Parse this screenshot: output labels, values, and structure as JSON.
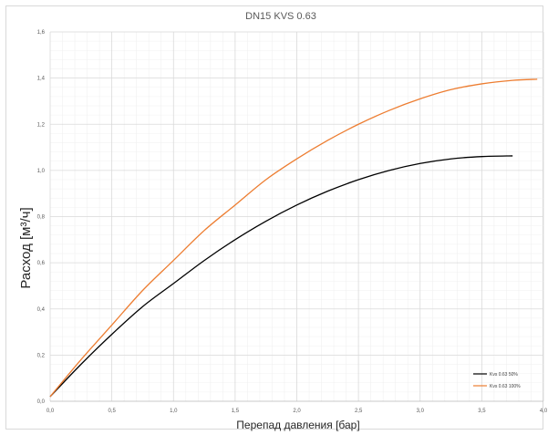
{
  "chart_data": {
    "type": "line",
    "title": "DN15 KVS 0.63",
    "xlabel": "Перепад давления [бар]",
    "ylabel": "Расход  [м³/ч]",
    "xlim": [
      0,
      4
    ],
    "ylim": [
      0,
      1.6
    ],
    "x_ticks": [
      "0,0",
      "0,5",
      "1,0",
      "1,5",
      "2,0",
      "2,5",
      "3,0",
      "3,5",
      "4,0"
    ],
    "y_ticks": [
      "0,0",
      "0,2",
      "0,4",
      "0,6",
      "0,8",
      "1,0",
      "1,2",
      "1,4",
      "1,6"
    ],
    "grid": true,
    "minor_grid": true,
    "legend_position": "bottom-right",
    "series": [
      {
        "name": "Kvs 0.63 50%",
        "color": "#000000",
        "x": [
          0,
          0.25,
          0.5,
          0.75,
          1.0,
          1.25,
          1.5,
          1.75,
          2.0,
          2.25,
          2.5,
          2.75,
          3.0,
          3.25,
          3.5,
          3.75
        ],
        "y": [
          0.02,
          0.16,
          0.29,
          0.41,
          0.51,
          0.61,
          0.7,
          0.78,
          0.85,
          0.91,
          0.96,
          1.0,
          1.03,
          1.05,
          1.06,
          1.063
        ]
      },
      {
        "name": "Kvs 0.63 100%",
        "color": "#ED7D31",
        "x": [
          0,
          0.25,
          0.5,
          0.75,
          1.0,
          1.25,
          1.5,
          1.75,
          2.0,
          2.25,
          2.5,
          2.75,
          3.0,
          3.25,
          3.5,
          3.75,
          3.95
        ],
        "y": [
          0.02,
          0.18,
          0.33,
          0.48,
          0.61,
          0.74,
          0.85,
          0.96,
          1.05,
          1.13,
          1.2,
          1.26,
          1.31,
          1.35,
          1.375,
          1.39,
          1.395
        ]
      }
    ]
  }
}
